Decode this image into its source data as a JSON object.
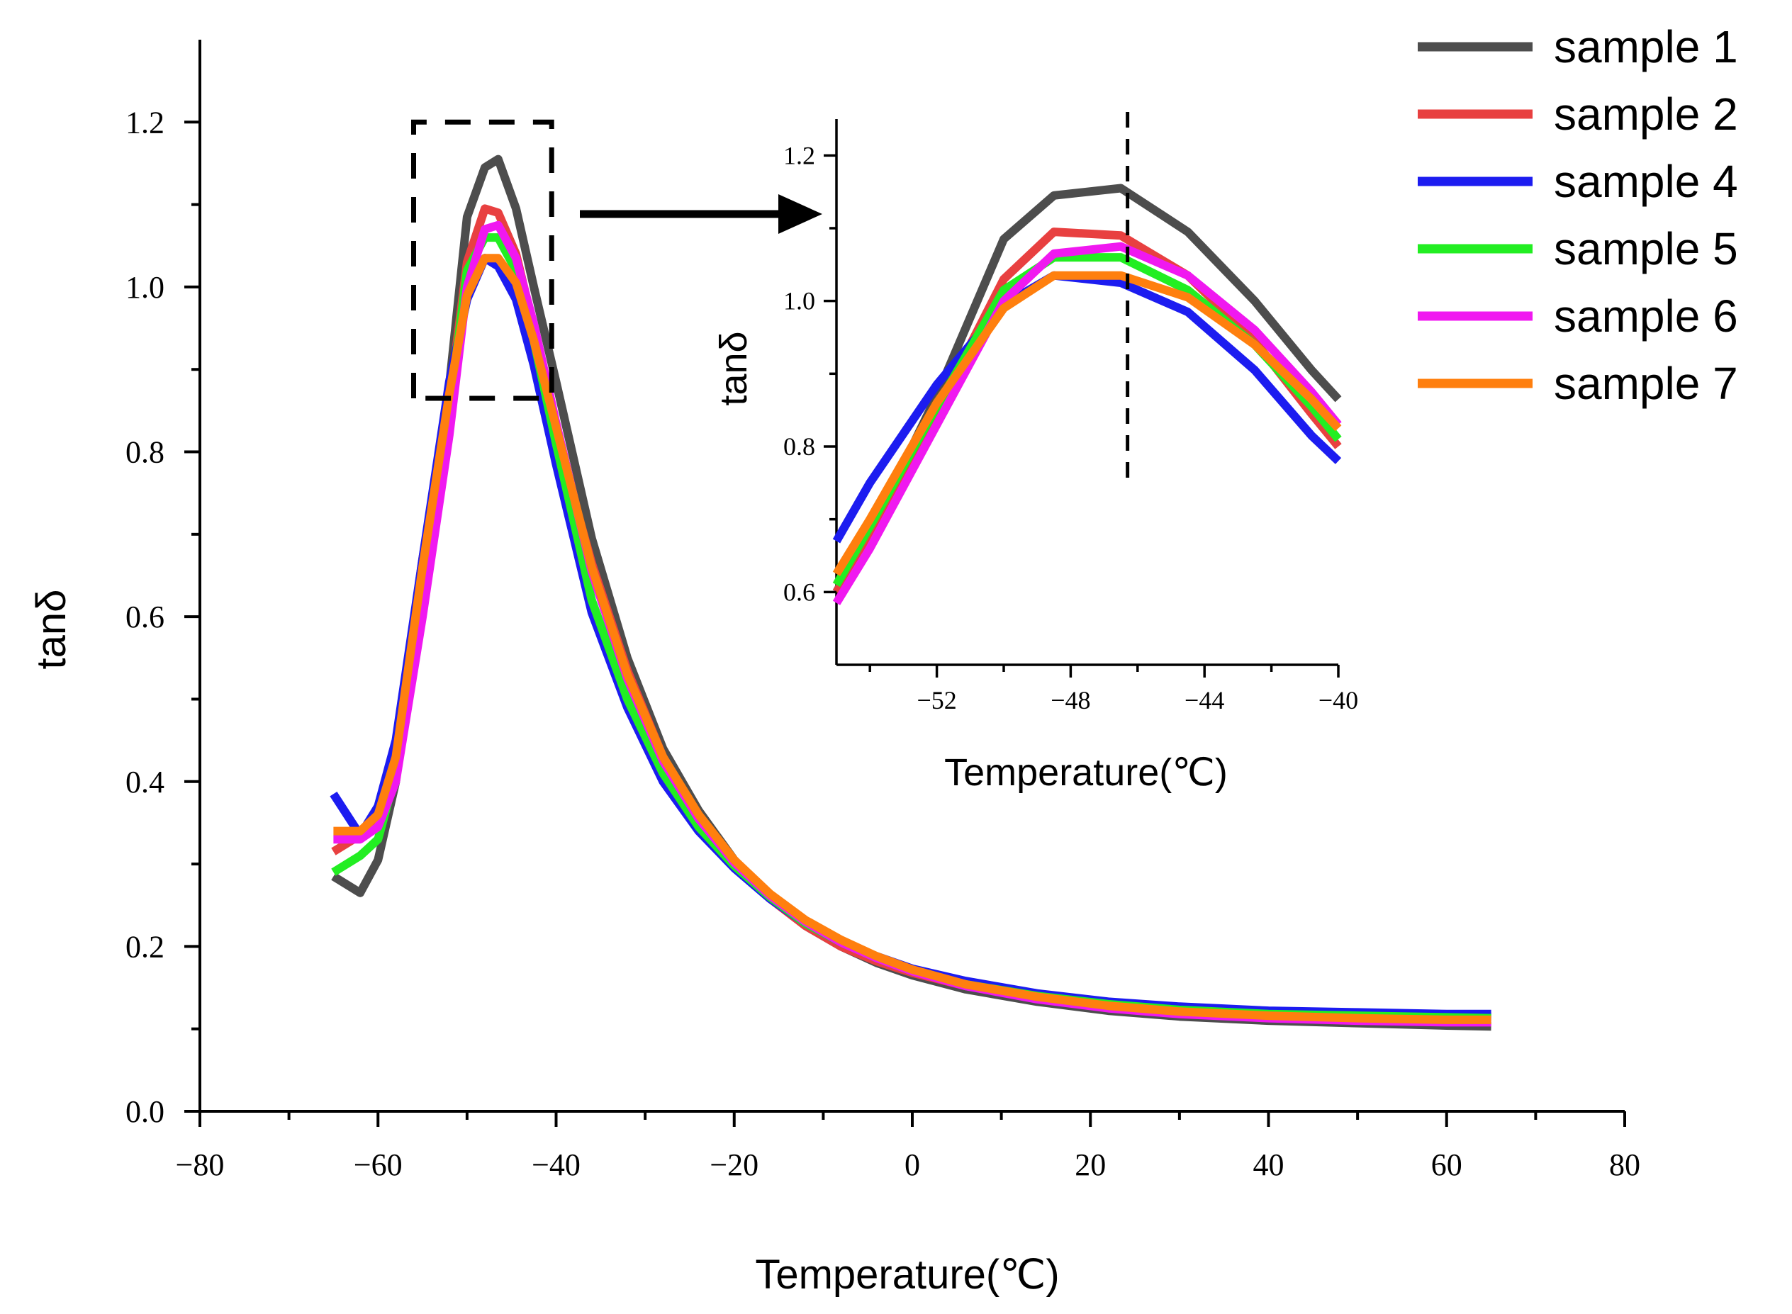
{
  "chart_data": [
    {
      "type": "line",
      "name": "main",
      "xlabel": "Temperature(℃)",
      "ylabel": "tanδ",
      "xlim": [
        -80,
        80
      ],
      "ylim": [
        0,
        1.3
      ],
      "xticks": [
        -80,
        -60,
        -40,
        -20,
        0,
        20,
        40,
        60,
        80
      ],
      "xtick_labels": [
        "−80",
        "−60",
        "−40",
        "−20",
        "0",
        "20",
        "40",
        "60",
        "80"
      ],
      "yticks": [
        0,
        0.2,
        0.4,
        0.6,
        0.8,
        1.0,
        1.2
      ],
      "ytick_labels": [
        "0.0",
        "0.2",
        "0.4",
        "0.6",
        "0.8",
        "1.0",
        "1.2"
      ],
      "zoom_box": {
        "x": [
          -56,
          -40.5
        ],
        "y": [
          0.865,
          1.2
        ]
      },
      "series": [
        {
          "name": "sample 1",
          "color": "#4d4d4d",
          "x": [
            -65,
            -62,
            -60,
            -58,
            -55,
            -52,
            -50,
            -48,
            -46.5,
            -44.5,
            -42.5,
            -40,
            -36,
            -32,
            -28,
            -24,
            -20,
            -16,
            -12,
            -8,
            -4,
            0,
            6,
            14,
            22,
            30,
            40,
            50,
            60,
            65
          ],
          "y": [
            0.285,
            0.265,
            0.305,
            0.4,
            0.65,
            0.88,
            1.085,
            1.145,
            1.155,
            1.095,
            1.0,
            0.885,
            0.695,
            0.55,
            0.44,
            0.365,
            0.305,
            0.26,
            0.225,
            0.2,
            0.18,
            0.165,
            0.148,
            0.133,
            0.122,
            0.115,
            0.11,
            0.107,
            0.104,
            0.103
          ]
        },
        {
          "name": "sample 2",
          "color": "#e84040",
          "x": [
            -65,
            -62,
            -60,
            -58,
            -55,
            -52,
            -50,
            -48,
            -46.5,
            -44.5,
            -42.5,
            -40,
            -36,
            -32,
            -28,
            -24,
            -20,
            -16,
            -12,
            -8,
            -4,
            0,
            6,
            14,
            22,
            30,
            40,
            50,
            60,
            65
          ],
          "y": [
            0.315,
            0.335,
            0.36,
            0.44,
            0.67,
            0.86,
            1.03,
            1.095,
            1.09,
            1.04,
            0.95,
            0.82,
            0.665,
            0.535,
            0.43,
            0.355,
            0.3,
            0.258,
            0.225,
            0.2,
            0.182,
            0.168,
            0.152,
            0.138,
            0.128,
            0.122,
            0.118,
            0.116,
            0.115,
            0.115
          ]
        },
        {
          "name": "sample 4",
          "color": "#1c1cf0",
          "x": [
            -65,
            -62,
            -60,
            -58,
            -55,
            -52,
            -50,
            -48,
            -46.5,
            -44.5,
            -42.5,
            -40,
            -36,
            -32,
            -28,
            -24,
            -20,
            -16,
            -12,
            -8,
            -4,
            0,
            6,
            14,
            22,
            30,
            40,
            50,
            60,
            65
          ],
          "y": [
            0.385,
            0.335,
            0.37,
            0.45,
            0.67,
            0.885,
            0.985,
            1.035,
            1.025,
            0.985,
            0.905,
            0.785,
            0.605,
            0.49,
            0.4,
            0.34,
            0.295,
            0.258,
            0.228,
            0.205,
            0.188,
            0.173,
            0.158,
            0.143,
            0.133,
            0.127,
            0.122,
            0.12,
            0.118,
            0.118
          ]
        },
        {
          "name": "sample 5",
          "color": "#22ee22",
          "x": [
            -65,
            -62,
            -60,
            -58,
            -55,
            -52,
            -50,
            -48,
            -46.5,
            -44.5,
            -42.5,
            -40,
            -36,
            -32,
            -28,
            -24,
            -20,
            -16,
            -12,
            -8,
            -4,
            0,
            6,
            14,
            22,
            30,
            40,
            50,
            60,
            65
          ],
          "y": [
            0.29,
            0.31,
            0.33,
            0.41,
            0.64,
            0.85,
            1.02,
            1.06,
            1.06,
            1.02,
            0.935,
            0.81,
            0.62,
            0.5,
            0.41,
            0.345,
            0.298,
            0.26,
            0.228,
            0.205,
            0.186,
            0.17,
            0.154,
            0.14,
            0.13,
            0.123,
            0.118,
            0.116,
            0.114,
            0.113
          ]
        },
        {
          "name": "sample 6",
          "color": "#f018f0",
          "x": [
            -65,
            -62,
            -60,
            -58,
            -55,
            -52,
            -50,
            -48,
            -46.5,
            -44.5,
            -42.5,
            -40,
            -36,
            -32,
            -28,
            -24,
            -20,
            -16,
            -12,
            -8,
            -4,
            0,
            6,
            14,
            22,
            30,
            40,
            50,
            60,
            65
          ],
          "y": [
            0.33,
            0.33,
            0.345,
            0.4,
            0.6,
            0.82,
            1.0,
            1.07,
            1.075,
            1.035,
            0.955,
            0.835,
            0.655,
            0.525,
            0.425,
            0.355,
            0.302,
            0.262,
            0.23,
            0.205,
            0.186,
            0.17,
            0.152,
            0.136,
            0.125,
            0.118,
            0.113,
            0.11,
            0.108,
            0.108
          ]
        },
        {
          "name": "sample 7",
          "color": "#ff7f0e",
          "x": [
            -65,
            -62,
            -60,
            -58,
            -55,
            -52,
            -50,
            -48,
            -46.5,
            -44.5,
            -42.5,
            -40,
            -36,
            -32,
            -28,
            -24,
            -20,
            -16,
            -12,
            -8,
            -4,
            0,
            6,
            14,
            22,
            30,
            40,
            50,
            60,
            65
          ],
          "y": [
            0.34,
            0.34,
            0.36,
            0.43,
            0.66,
            0.87,
            0.99,
            1.035,
            1.035,
            1.005,
            0.935,
            0.83,
            0.66,
            0.53,
            0.43,
            0.36,
            0.305,
            0.264,
            0.232,
            0.208,
            0.188,
            0.172,
            0.154,
            0.139,
            0.128,
            0.121,
            0.116,
            0.113,
            0.111,
            0.111
          ]
        }
      ]
    },
    {
      "type": "line",
      "name": "inset",
      "xlabel": "Temperature(℃)",
      "ylabel": "tanδ",
      "xlim": [
        -55,
        -40
      ],
      "ylim": [
        0.5,
        1.25
      ],
      "xticks": [
        -52,
        -48,
        -44,
        -40
      ],
      "xtick_labels": [
        "−52",
        "−48",
        "−44",
        "−40"
      ],
      "yticks": [
        0.6,
        0.8,
        1.0,
        1.2
      ],
      "ytick_labels": [
        "0.6",
        "0.8",
        "1.0",
        "1.2"
      ],
      "vline_x": -46.3,
      "series": [
        {
          "name": "sample 1",
          "color": "#4d4d4d",
          "x": [
            -55,
            -54,
            -52,
            -50,
            -48.5,
            -46.5,
            -44.5,
            -42.5,
            -40.8,
            -40
          ],
          "y": [
            0.6,
            0.68,
            0.87,
            1.085,
            1.145,
            1.155,
            1.095,
            1.0,
            0.905,
            0.865
          ]
        },
        {
          "name": "sample 2",
          "color": "#e84040",
          "x": [
            -55,
            -54,
            -52,
            -50,
            -48.5,
            -46.5,
            -44.5,
            -42.5,
            -40.8,
            -40
          ],
          "y": [
            0.6,
            0.67,
            0.85,
            1.03,
            1.095,
            1.09,
            1.035,
            0.945,
            0.845,
            0.8
          ]
        },
        {
          "name": "sample 4",
          "color": "#1c1cf0",
          "x": [
            -55,
            -54,
            -52,
            -50,
            -48.5,
            -46.5,
            -44.5,
            -42.5,
            -40.8,
            -40
          ],
          "y": [
            0.67,
            0.75,
            0.885,
            0.995,
            1.035,
            1.025,
            0.985,
            0.905,
            0.815,
            0.78
          ]
        },
        {
          "name": "sample 5",
          "color": "#22ee22",
          "x": [
            -55,
            -54,
            -52,
            -50,
            -48.5,
            -46.5,
            -44.5,
            -42.5,
            -40.8,
            -40
          ],
          "y": [
            0.61,
            0.69,
            0.855,
            1.015,
            1.06,
            1.06,
            1.015,
            0.94,
            0.855,
            0.81
          ]
        },
        {
          "name": "sample 6",
          "color": "#f018f0",
          "x": [
            -55,
            -54,
            -52,
            -50,
            -48.5,
            -46.5,
            -44.5,
            -42.5,
            -40.8,
            -40
          ],
          "y": [
            0.585,
            0.66,
            0.83,
            1.0,
            1.065,
            1.075,
            1.035,
            0.96,
            0.875,
            0.83
          ]
        },
        {
          "name": "sample 7",
          "color": "#ff7f0e",
          "x": [
            -55,
            -54,
            -52,
            -50,
            -48.5,
            -46.5,
            -44.5,
            -42.5,
            -40.8,
            -40
          ],
          "y": [
            0.625,
            0.7,
            0.86,
            0.99,
            1.035,
            1.035,
            1.005,
            0.94,
            0.865,
            0.825
          ]
        }
      ]
    }
  ],
  "legend": {
    "entries": [
      {
        "label": "sample 1",
        "color": "#4d4d4d"
      },
      {
        "label": "sample 2",
        "color": "#e84040"
      },
      {
        "label": "sample 4",
        "color": "#1c1cf0"
      },
      {
        "label": "sample 5",
        "color": "#22ee22"
      },
      {
        "label": "sample 6",
        "color": "#f018f0"
      },
      {
        "label": "sample 7",
        "color": "#ff7f0e"
      }
    ]
  }
}
